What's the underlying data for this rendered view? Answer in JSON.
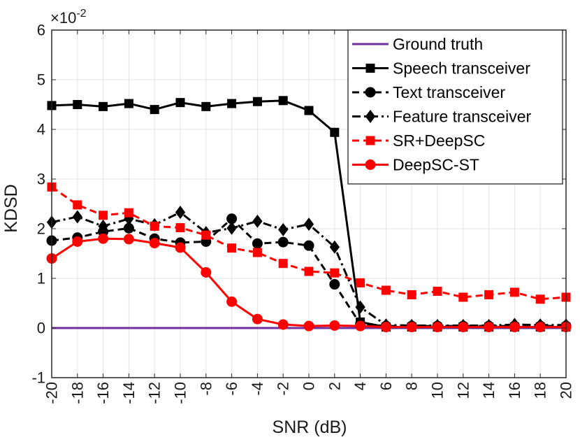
{
  "chart_data": {
    "type": "line",
    "xlabel": "SNR (dB)",
    "ylabel": "KDSD",
    "exponent_label": {
      "base": "×10",
      "exp": "-2"
    },
    "xlim": [
      -20,
      20
    ],
    "ylim": [
      -1,
      6
    ],
    "grid": true,
    "legend_position": "top-right",
    "x": [
      -20,
      -18,
      -16,
      -14,
      -12,
      -10,
      -8,
      -6,
      -4,
      -2,
      0,
      2,
      4,
      6,
      8,
      10,
      12,
      14,
      16,
      18,
      20
    ],
    "x_tick_labels": [
      "-20",
      "-18",
      "-16",
      "-14",
      "-12",
      "-10",
      "-8",
      "-6",
      "-4",
      "-2",
      "0",
      "2",
      "4",
      "6",
      "8",
      "10",
      "12",
      "14",
      "16",
      "18",
      "20"
    ],
    "y_ticks": [
      -1,
      0,
      1,
      2,
      3,
      4,
      5,
      6
    ],
    "y_tick_labels": [
      "-1",
      "0",
      "1",
      "2",
      "3",
      "4",
      "5",
      "6"
    ],
    "series": [
      {
        "name": "Ground truth",
        "color": "#7030a0",
        "dash": "solid",
        "marker": "none",
        "values": [
          0,
          0,
          0,
          0,
          0,
          0,
          0,
          0,
          0,
          0,
          0,
          0,
          0,
          0,
          0,
          0,
          0,
          0,
          0,
          0,
          0
        ]
      },
      {
        "name": "Speech transceiver",
        "color": "#000000",
        "dash": "solid",
        "marker": "square",
        "values": [
          4.48,
          4.5,
          4.46,
          4.52,
          4.4,
          4.54,
          4.46,
          4.52,
          4.56,
          4.58,
          4.38,
          3.94,
          0.12,
          0.02,
          0.02,
          0.02,
          0.02,
          0.02,
          0.02,
          0.02,
          0.02
        ]
      },
      {
        "name": "Text transceiver",
        "color": "#000000",
        "dash": "dashed",
        "marker": "circle",
        "values": [
          1.76,
          1.82,
          1.94,
          2.01,
          1.8,
          1.72,
          1.74,
          2.2,
          1.7,
          1.73,
          1.66,
          0.88,
          0.08,
          0.04,
          0.04,
          0.04,
          0.04,
          0.04,
          0.04,
          0.04,
          0.04
        ]
      },
      {
        "name": "Feature transceiver",
        "color": "#000000",
        "dash": "dashdot",
        "marker": "diamond",
        "values": [
          2.13,
          2.24,
          2.05,
          2.2,
          2.08,
          2.33,
          1.92,
          2.01,
          2.15,
          1.98,
          2.09,
          1.63,
          0.42,
          0.06,
          0.05,
          0.05,
          0.05,
          0.05,
          0.07,
          0.06,
          0.06
        ]
      },
      {
        "name": "SR+DeepSC",
        "color": "#ff0000",
        "dash": "dashed",
        "marker": "square",
        "values": [
          2.84,
          2.48,
          2.27,
          2.32,
          2.05,
          2.02,
          1.87,
          1.61,
          1.52,
          1.3,
          1.14,
          1.11,
          0.91,
          0.76,
          0.67,
          0.74,
          0.62,
          0.67,
          0.72,
          0.58,
          0.62
        ]
      },
      {
        "name": "DeepSC-ST",
        "color": "#ff0000",
        "dash": "solid",
        "marker": "circle",
        "values": [
          1.4,
          1.74,
          1.8,
          1.79,
          1.71,
          1.62,
          1.12,
          0.53,
          0.18,
          0.07,
          0.04,
          0.05,
          0.04,
          0.02,
          0.02,
          0.02,
          0.02,
          0.02,
          0.02,
          0.02,
          0.02
        ]
      }
    ]
  }
}
